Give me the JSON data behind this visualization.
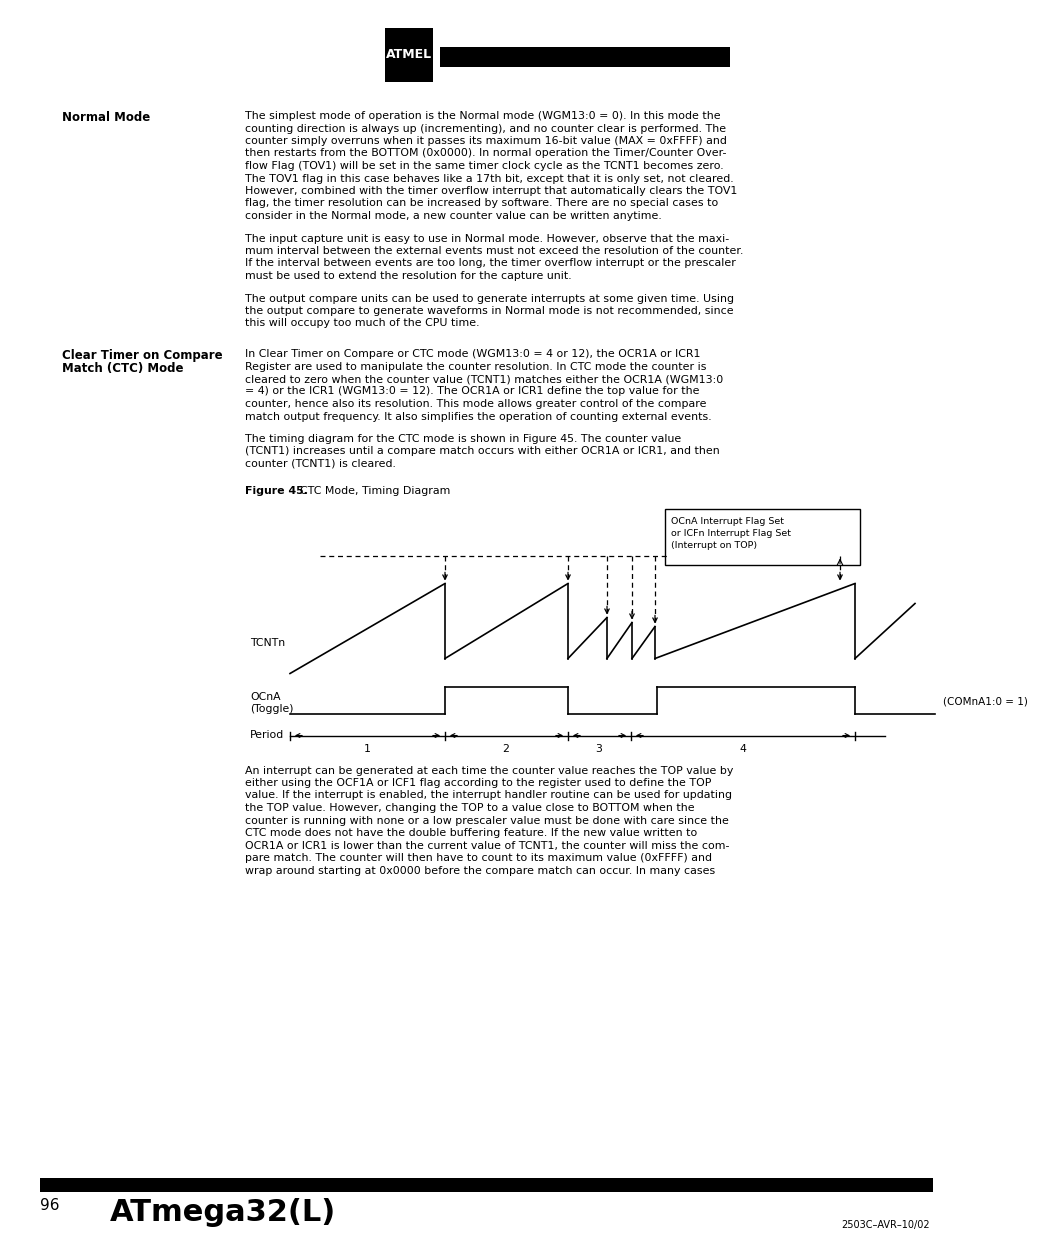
{
  "page_number": "96",
  "footer_title": "ATmega32(L)",
  "footer_code": "2503C–AVR–10/02",
  "left_heading1": "Normal Mode",
  "left_heading2_line1": "Clear Timer on Compare",
  "left_heading2_line2": "Match (CTC) Mode",
  "para_nm1": [
    "The simplest mode of operation is the Normal mode (WGM13:0 = 0). In this mode the",
    "counting direction is always up (incrementing), and no counter clear is performed. The",
    "counter simply overruns when it passes its maximum 16-bit value (MAX = 0xFFFF) and",
    "then restarts from the BOTTOM (0x0000). In normal operation the Timer/Counter Over-",
    "flow Flag (TOV1) will be set in the same timer clock cycle as the TCNT1 becomes zero.",
    "The TOV1 flag in this case behaves like a 17th bit, except that it is only set, not cleared.",
    "However, combined with the timer overflow interrupt that automatically clears the TOV1",
    "flag, the timer resolution can be increased by software. There are no special cases to",
    "consider in the Normal mode, a new counter value can be written anytime."
  ],
  "para_nm2": [
    "The input capture unit is easy to use in Normal mode. However, observe that the maxi-",
    "mum interval between the external events must not exceed the resolution of the counter.",
    "If the interval between events are too long, the timer overflow interrupt or the prescaler",
    "must be used to extend the resolution for the capture unit."
  ],
  "para_nm3": [
    "The output compare units can be used to generate interrupts at some given time. Using",
    "the output compare to generate waveforms in Normal mode is not recommended, since",
    "this will occupy too much of the CPU time."
  ],
  "para_ctc1": [
    "In Clear Timer on Compare or CTC mode (WGM13:0 = 4 or 12), the OCR1A or ICR1",
    "Register are used to manipulate the counter resolution. In CTC mode the counter is",
    "cleared to zero when the counter value (TCNT1) matches either the OCR1A (WGM13:0",
    "= 4) or the ICR1 (WGM13:0 = 12). The OCR1A or ICR1 define the top value for the",
    "counter, hence also its resolution. This mode allows greater control of the compare",
    "match output frequency. It also simplifies the operation of counting external events."
  ],
  "para_ctc2": [
    "The timing diagram for the CTC mode is shown in Figure 45. The counter value",
    "(TCNT1) increases until a compare match occurs with either OCR1A or ICR1, and then",
    "counter (TCNT1) is cleared."
  ],
  "para_bot": [
    "An interrupt can be generated at each time the counter value reaches the TOP value by",
    "either using the OCF1A or ICF1 flag according to the register used to define the TOP",
    "value. If the interrupt is enabled, the interrupt handler routine can be used for updating",
    "the TOP value. However, changing the TOP to a value close to BOTTOM when the",
    "counter is running with none or a low prescaler value must be done with care since the",
    "CTC mode does not have the double buffering feature. If the new value written to",
    "OCR1A or ICR1 is lower than the current value of TCNT1, the counter will miss the com-",
    "pare match. The counter will then have to count to its maximum value (0xFFFF) and",
    "wrap around starting at 0x0000 before the compare match can occur. In many cases"
  ],
  "figure_label_bold": "Figure 45.",
  "figure_label_normal": "  CTC Mode, Timing Diagram",
  "tcntn_label": "TCNTn",
  "ocna_label1": "OCnA",
  "ocna_label2": "(Toggle)",
  "period_label": "Period",
  "box_line1": "OCnA Interrupt Flag Set",
  "box_line2": "or ICFn Interrupt Flag Set",
  "box_line3": "(Interrupt on TOP)",
  "comna_label": "(COMnA1:0 = 1)",
  "period_ticks": [
    "1",
    "2",
    "3",
    "4"
  ],
  "bg_color": "#ffffff"
}
